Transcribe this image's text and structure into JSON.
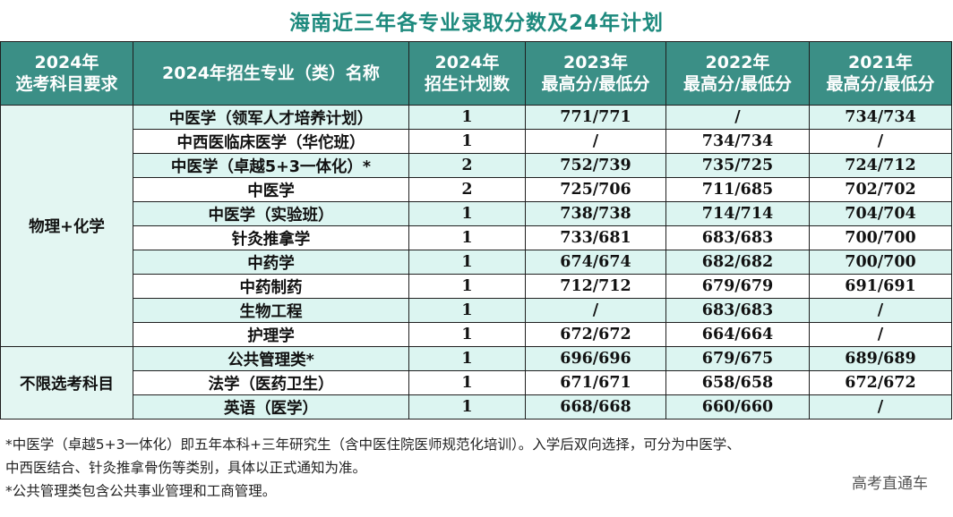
{
  "title": "海南近三年各专业录取分数及24年计划",
  "headers": {
    "req": [
      "2024年",
      "选考科目要求"
    ],
    "major": "2024年招生专业（类）名称",
    "plan": [
      "2024年",
      "招生计划数"
    ],
    "y2023": [
      "2023年",
      "最高分/最低分"
    ],
    "y2022": [
      "2022年",
      "最高分/最低分"
    ],
    "y2021": [
      "2021年",
      "最高分/最低分"
    ]
  },
  "groups": [
    {
      "requirement": "物理+化学",
      "start": 0,
      "span": 10
    },
    {
      "requirement": "不限选考科目",
      "start": 10,
      "span": 3
    }
  ],
  "rows": [
    {
      "major": "中医学（领军人才培养计划）",
      "plan": "1",
      "y2023": "771/771",
      "y2022": "/",
      "y2021": "734/734"
    },
    {
      "major": "中西医临床医学（华佗班）",
      "plan": "1",
      "y2023": "/",
      "y2022": "734/734",
      "y2021": "/"
    },
    {
      "major": "中医学（卓越5+3一体化）*",
      "plan": "2",
      "y2023": "752/739",
      "y2022": "735/725",
      "y2021": "724/712"
    },
    {
      "major": "中医学",
      "plan": "2",
      "y2023": "725/706",
      "y2022": "711/685",
      "y2021": "702/702"
    },
    {
      "major": "中医学（实验班）",
      "plan": "1",
      "y2023": "738/738",
      "y2022": "714/714",
      "y2021": "704/704"
    },
    {
      "major": "针灸推拿学",
      "plan": "1",
      "y2023": "733/681",
      "y2022": "683/683",
      "y2021": "700/700"
    },
    {
      "major": "中药学",
      "plan": "1",
      "y2023": "674/674",
      "y2022": "682/682",
      "y2021": "700/700"
    },
    {
      "major": "中药制药",
      "plan": "1",
      "y2023": "712/712",
      "y2022": "679/679",
      "y2021": "691/691"
    },
    {
      "major": "生物工程",
      "plan": "1",
      "y2023": "/",
      "y2022": "683/683",
      "y2021": "/"
    },
    {
      "major": "护理学",
      "plan": "1",
      "y2023": "672/672",
      "y2022": "664/664",
      "y2021": "/"
    },
    {
      "major": "公共管理类*",
      "plan": "1",
      "y2023": "696/696",
      "y2022": "679/675",
      "y2021": "689/689"
    },
    {
      "major": "法学（医药卫生）",
      "plan": "1",
      "y2023": "671/671",
      "y2022": "658/658",
      "y2021": "672/672"
    },
    {
      "major": "英语（医学）",
      "plan": "1",
      "y2023": "668/668",
      "y2022": "660/660",
      "y2021": "/"
    }
  ],
  "notes": [
    "*中医学（卓越5+3一体化）即五年本科+三年研究生（含中医住院医师规范化培训）。入学后双向选择，可分为中医学、",
    "中西医结合、针灸推拿骨伤等类别，具体以正式通知为准。",
    "*公共管理类包含公共事业管理和工商管理。"
  ],
  "watermark": "高考直通车",
  "colors": {
    "header_bg": "#3b8f86",
    "accent_text": "#1e7a70",
    "row_shade": "#dcf5f1"
  }
}
